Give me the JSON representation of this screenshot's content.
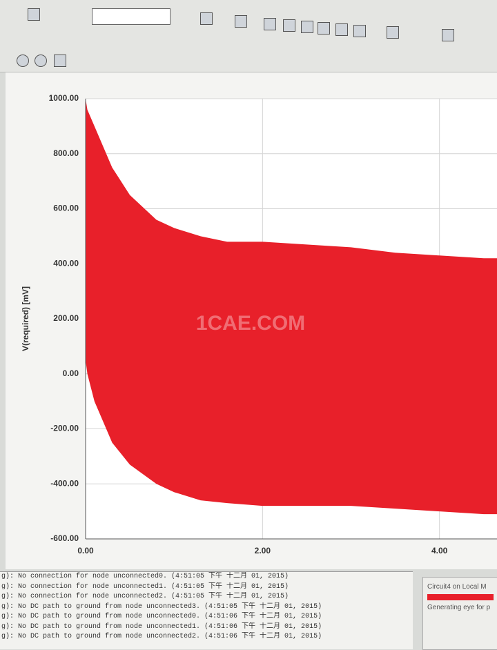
{
  "chart_data": {
    "type": "band",
    "y_label": "V(required) [mV]",
    "watermark": "1CAE.COM",
    "x": [
      0,
      0.02,
      0.1,
      0.3,
      0.5,
      0.8,
      1.0,
      1.3,
      1.6,
      2.0,
      2.5,
      3.0,
      3.5,
      4.0,
      4.5,
      4.65
    ],
    "upper": [
      1000,
      960,
      900,
      750,
      650,
      560,
      530,
      500,
      480,
      480,
      470,
      460,
      440,
      430,
      420,
      420
    ],
    "lower": [
      50,
      0,
      -100,
      -250,
      -330,
      -400,
      -430,
      -460,
      -470,
      -480,
      -480,
      -480,
      -490,
      -500,
      -510,
      -510
    ],
    "color": "#e8202a",
    "grid": true,
    "xlim": [
      0,
      4.65
    ],
    "ylim": [
      -600,
      1000
    ],
    "xticks": [
      {
        "value": 0,
        "label": "0.00"
      },
      {
        "value": 2,
        "label": "2.00"
      },
      {
        "value": 4,
        "label": "4.00"
      }
    ],
    "yticks": [
      {
        "value": 1000,
        "label": "1000.00"
      },
      {
        "value": 800,
        "label": "800.00"
      },
      {
        "value": 600,
        "label": "600.00"
      },
      {
        "value": 400,
        "label": "400.00"
      },
      {
        "value": 200,
        "label": "200.00"
      },
      {
        "value": 0,
        "label": "0.00"
      },
      {
        "value": -200,
        "label": "-200.00"
      },
      {
        "value": -400,
        "label": "-400.00"
      },
      {
        "value": -600,
        "label": "-600.00"
      }
    ]
  },
  "log": [
    "g): No connection for node unconnected0.  (4:51:05 下午  十二月 01, 2015)",
    "g): No connection for node unconnected1.  (4:51:05 下午  十二月 01, 2015)",
    "g): No connection for node unconnected2.  (4:51:05 下午  十二月 01, 2015)",
    "g): No DC path to ground from node unconnected3.  (4:51:05 下午  十二月 01, 2015)",
    "g): No DC path to ground from node unconnected0.  (4:51:06 下午  十二月 01, 2015)",
    "g): No DC path to ground from node unconnected1.  (4:51:06 下午  十二月 01, 2015)",
    "g): No DC path to ground from node unconnected2.  (4:51:06 下午  十二月 01, 2015)"
  ],
  "side_panel": {
    "title": "Circuit4 on Local M",
    "status": "Generating eye for p"
  }
}
